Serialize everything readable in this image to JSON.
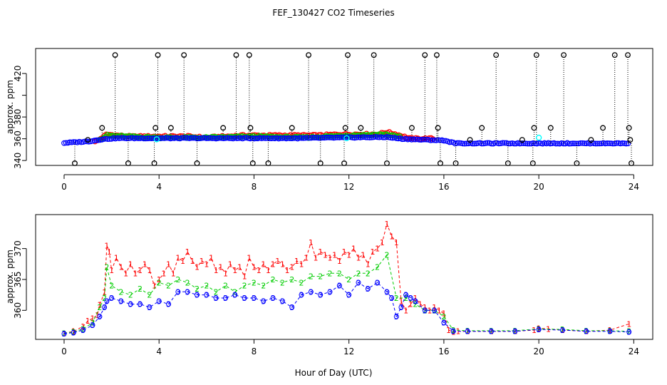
{
  "figure_title": "FEF_130427  CO2 Timeseries",
  "x_axis_label": "Hour of Day (UTC)",
  "chart_data": [
    {
      "type": "scatter",
      "title": "",
      "ylabel": "approx. ppm",
      "xlabel": "",
      "xlim": [
        -1.2,
        24.8
      ],
      "ylim": [
        335.5,
        443
      ],
      "xticks": [
        0,
        4,
        8,
        12,
        16,
        20,
        24
      ],
      "yticks": [
        340,
        360,
        380,
        400,
        420
      ],
      "yticklabels_shown": [
        "340",
        "360",
        "380",
        "420"
      ],
      "grid": false,
      "markers": "open circles, dotted vertical lines to out-of-range spikes",
      "colors": {
        "series1": "#ff0000",
        "series2": "#00cd00",
        "series3": "#0000ff",
        "spikes": "#000000",
        "highlight": "#00ffff"
      },
      "series": [
        {
          "values_hour_ppm": [
            [
              1.4,
              358
            ],
            [
              1.8,
              364
            ],
            [
              2.2,
              363
            ],
            [
              2.8,
              362
            ],
            [
              3.6,
              362
            ],
            [
              4.4,
              362
            ],
            [
              5.2,
              362
            ],
            [
              6.0,
              361
            ],
            [
              6.8,
              362
            ],
            [
              7.6,
              363
            ],
            [
              8.4,
              363
            ],
            [
              9.2,
              363
            ],
            [
              10.0,
              363
            ],
            [
              10.8,
              363
            ],
            [
              11.6,
              364
            ],
            [
              12.4,
              364
            ],
            [
              13.2,
              364
            ],
            [
              13.6,
              366
            ],
            [
              14.0,
              364
            ],
            [
              14.6,
              360
            ],
            [
              15.4,
              360
            ]
          ]
        },
        {
          "values_hour_ppm": [
            [
              1.6,
              360
            ],
            [
              1.8,
              363
            ],
            [
              2.6,
              362
            ],
            [
              4.0,
              361
            ],
            [
              6.0,
              361
            ],
            [
              8.0,
              362
            ],
            [
              10.0,
              361
            ],
            [
              12.0,
              363
            ],
            [
              13.6,
              364
            ],
            [
              14.0,
              362
            ]
          ]
        },
        {
          "values_hour_ppm": [
            [
              0.0,
              356.2
            ],
            [
              1.0,
              357.5
            ],
            [
              1.6,
              359.5
            ],
            [
              2.2,
              360.5
            ],
            [
              4.0,
              360.5
            ],
            [
              6.0,
              360.5
            ],
            [
              8.0,
              360.5
            ],
            [
              10.0,
              360.5
            ],
            [
              12.0,
              361.2
            ],
            [
              13.6,
              361.5
            ],
            [
              14.2,
              360
            ],
            [
              15.0,
              359.2
            ],
            [
              16.0,
              358.5
            ],
            [
              16.5,
              355.8
            ],
            [
              20.0,
              355.8
            ],
            [
              23.8,
              355.8
            ]
          ]
        }
      ],
      "spikes_hour_ppm": [
        [
          0.45,
          337.5
        ],
        [
          1.0,
          359
        ],
        [
          1.6,
          370
        ],
        [
          2.15,
          437
        ],
        [
          2.7,
          337.5
        ],
        [
          3.8,
          337.5
        ],
        [
          3.85,
          370
        ],
        [
          3.95,
          437
        ],
        [
          4.5,
          370
        ],
        [
          5.05,
          437
        ],
        [
          5.6,
          337.5
        ],
        [
          6.7,
          370
        ],
        [
          7.25,
          437
        ],
        [
          7.8,
          437
        ],
        [
          7.85,
          370
        ],
        [
          7.95,
          337.5
        ],
        [
          8.6,
          337.5
        ],
        [
          9.6,
          370
        ],
        [
          10.3,
          437
        ],
        [
          10.8,
          337.5
        ],
        [
          11.8,
          337.5
        ],
        [
          11.85,
          370
        ],
        [
          11.95,
          437
        ],
        [
          12.5,
          370
        ],
        [
          13.05,
          437
        ],
        [
          13.6,
          337.5
        ],
        [
          14.65,
          370
        ],
        [
          15.2,
          437
        ],
        [
          15.7,
          437
        ],
        [
          15.75,
          370
        ],
        [
          15.85,
          337.5
        ],
        [
          16.5,
          337.5
        ],
        [
          17.1,
          359
        ],
        [
          17.6,
          370
        ],
        [
          18.2,
          437
        ],
        [
          18.7,
          337.5
        ],
        [
          19.3,
          359
        ],
        [
          19.75,
          337.5
        ],
        [
          19.8,
          370
        ],
        [
          19.9,
          437
        ],
        [
          20.5,
          370
        ],
        [
          21.05,
          437
        ],
        [
          21.6,
          337.5
        ],
        [
          22.2,
          359
        ],
        [
          22.7,
          370
        ],
        [
          23.2,
          437
        ],
        [
          23.75,
          437
        ],
        [
          23.8,
          370
        ],
        [
          23.85,
          359
        ],
        [
          23.9,
          337.5
        ]
      ],
      "highlight_hour_ppm": [
        [
          3.9,
          359.5
        ],
        [
          11.9,
          360.5
        ],
        [
          20.0,
          361
        ]
      ]
    },
    {
      "type": "scatter",
      "title": "",
      "ylabel": "approx. ppm",
      "xlabel": "Hour of Day (UTC)",
      "xlim": [
        -1.2,
        24.8
      ],
      "ylim": [
        355.3,
        375.5
      ],
      "xticks": [
        0,
        4,
        8,
        12,
        16,
        20,
        24
      ],
      "yticks": [
        360,
        365,
        370
      ],
      "grid": false,
      "markers": "numeric glyphs 1/2/3 with dashed connecting lines",
      "series": [
        {
          "name": "1",
          "color": "#ff0000",
          "x": [
            0.0,
            0.4,
            0.8,
            1.0,
            1.2,
            1.4,
            1.5,
            1.7,
            1.8,
            1.9,
            2.0,
            2.2,
            2.4,
            2.6,
            2.8,
            3.0,
            3.2,
            3.4,
            3.6,
            3.8,
            4.0,
            4.2,
            4.4,
            4.6,
            4.8,
            5.0,
            5.2,
            5.4,
            5.6,
            5.8,
            6.0,
            6.2,
            6.4,
            6.6,
            6.8,
            7.0,
            7.2,
            7.4,
            7.6,
            7.8,
            8.0,
            8.2,
            8.4,
            8.6,
            8.8,
            9.0,
            9.2,
            9.4,
            9.6,
            9.8,
            10.0,
            10.2,
            10.4,
            10.6,
            10.8,
            11.0,
            11.2,
            11.4,
            11.6,
            11.8,
            12.0,
            12.2,
            12.4,
            12.6,
            12.8,
            13.0,
            13.2,
            13.4,
            13.6,
            13.8,
            14.0,
            14.2,
            14.4,
            14.6,
            14.8,
            15.0,
            15.2,
            15.4,
            15.6,
            15.8,
            16.0,
            16.2,
            16.4,
            16.6,
            17.0,
            18.0,
            19.0,
            19.8,
            20.0,
            20.4,
            21.0,
            22.0,
            23.0,
            23.8
          ],
          "values": [
            356.3,
            356.6,
            357.4,
            358.3,
            358.7,
            359.2,
            360.9,
            362.9,
            370.5,
            369.5,
            366.5,
            368.5,
            367.0,
            366.0,
            367.5,
            366.0,
            366.5,
            367.5,
            366.5,
            364.0,
            365.0,
            366.0,
            367.5,
            366.0,
            368.5,
            368.0,
            369.5,
            368.0,
            367.0,
            368.0,
            367.5,
            368.5,
            366.5,
            367.0,
            366.0,
            367.5,
            366.5,
            367.0,
            365.5,
            368.5,
            367.0,
            366.5,
            367.5,
            366.5,
            367.5,
            368.0,
            367.5,
            366.5,
            367.0,
            368.0,
            367.5,
            368.5,
            371.0,
            368.5,
            369.5,
            369.0,
            368.5,
            369.0,
            368.0,
            369.5,
            369.0,
            370.0,
            368.5,
            369.0,
            367.5,
            369.5,
            370.0,
            371.0,
            374.0,
            372.0,
            371.0,
            361.5,
            360.0,
            361.0,
            362.0,
            361.0,
            360.5,
            360.0,
            360.5,
            360.0,
            359.5,
            356.8,
            356.5,
            356.6,
            356.6,
            356.6,
            356.6,
            356.8,
            357.1,
            357.0,
            356.8,
            356.6,
            356.8,
            357.8
          ]
        },
        {
          "name": "2",
          "color": "#00cd00",
          "x": [
            0.0,
            0.4,
            0.8,
            1.2,
            1.5,
            1.7,
            1.8,
            2.0,
            2.4,
            2.8,
            3.2,
            3.6,
            4.0,
            4.4,
            4.8,
            5.2,
            5.6,
            6.0,
            6.4,
            6.8,
            7.2,
            7.6,
            8.0,
            8.4,
            8.8,
            9.2,
            9.6,
            10.0,
            10.4,
            10.8,
            11.2,
            11.6,
            12.0,
            12.4,
            12.8,
            13.2,
            13.6,
            14.0,
            14.4,
            14.8,
            15.2,
            15.6,
            16.0,
            16.4,
            17.0,
            18.0,
            19.0,
            20.0,
            21.0,
            22.0,
            23.0,
            23.8
          ],
          "values": [
            356.3,
            356.5,
            357.0,
            358.0,
            360.5,
            362.0,
            367.0,
            364.0,
            363.0,
            362.5,
            363.5,
            362.5,
            364.5,
            364.0,
            365.0,
            364.5,
            363.5,
            364.0,
            363.0,
            364.0,
            363.0,
            364.0,
            364.5,
            364.0,
            365.0,
            364.5,
            365.0,
            364.5,
            365.5,
            365.5,
            366.0,
            366.0,
            365.0,
            366.0,
            366.0,
            367.0,
            369.0,
            362.0,
            362.0,
            361.0,
            360.0,
            360.0,
            359.0,
            356.8,
            356.7,
            356.7,
            356.7,
            357.0,
            356.9,
            356.7,
            356.7,
            356.6
          ]
        },
        {
          "name": "3",
          "color": "#0000ff",
          "x": [
            0.0,
            0.4,
            0.8,
            1.2,
            1.5,
            1.7,
            1.8,
            2.0,
            2.4,
            2.8,
            3.2,
            3.6,
            4.0,
            4.4,
            4.8,
            5.2,
            5.6,
            6.0,
            6.4,
            6.8,
            7.2,
            7.6,
            8.0,
            8.4,
            8.8,
            9.2,
            9.6,
            10.0,
            10.4,
            10.8,
            11.2,
            11.6,
            12.0,
            12.4,
            12.8,
            13.2,
            13.6,
            13.8,
            14.0,
            14.2,
            14.4,
            14.6,
            14.8,
            15.2,
            15.6,
            16.0,
            16.4,
            17.0,
            18.0,
            19.0,
            20.0,
            21.0,
            22.0,
            23.0,
            23.8
          ],
          "values": [
            356.2,
            356.4,
            356.8,
            357.6,
            359.0,
            360.5,
            361.5,
            362.0,
            361.5,
            361.0,
            361.0,
            360.5,
            361.5,
            361.0,
            363.0,
            363.0,
            362.5,
            362.5,
            362.0,
            362.0,
            362.5,
            362.0,
            362.0,
            361.5,
            362.0,
            361.5,
            360.5,
            362.5,
            363.0,
            362.5,
            363.0,
            364.0,
            362.5,
            364.5,
            363.5,
            364.5,
            363.0,
            362.0,
            359.0,
            360.5,
            362.5,
            362.0,
            361.5,
            360.0,
            360.0,
            358.0,
            356.6,
            356.6,
            356.6,
            356.6,
            356.9,
            356.8,
            356.6,
            356.6,
            356.5
          ]
        }
      ]
    }
  ]
}
